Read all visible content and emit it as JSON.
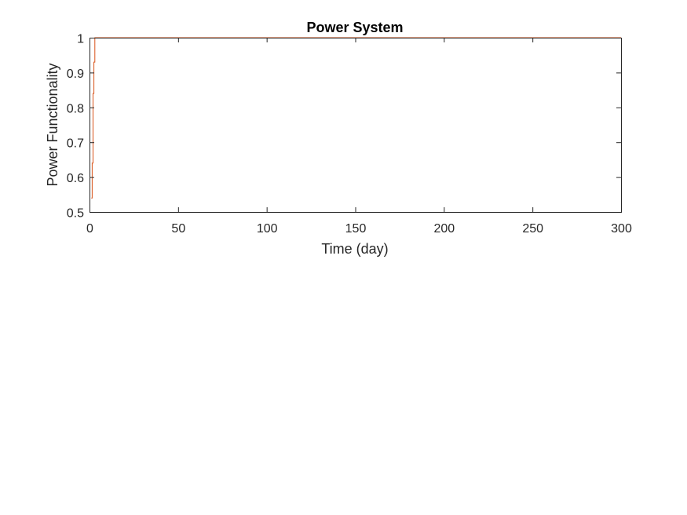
{
  "chart_data": {
    "type": "line",
    "title": "Power System",
    "xlabel": "Time (day)",
    "ylabel": "Power Functionality",
    "xlim": [
      0,
      300
    ],
    "ylim": [
      0.5,
      1
    ],
    "xticks": [
      0,
      50,
      100,
      150,
      200,
      250,
      300
    ],
    "xtick_labels": [
      "0",
      "50",
      "100",
      "150",
      "200",
      "250",
      "300"
    ],
    "yticks": [
      0.5,
      0.6,
      0.7,
      0.8,
      0.9,
      1
    ],
    "ytick_labels": [
      "0.5",
      "0.6",
      "0.7",
      "0.8",
      "0.9",
      "1"
    ],
    "grid": false,
    "series": [
      {
        "color": "#D95319",
        "x": [
          1,
          1,
          1.5,
          1.5,
          2,
          2,
          2.5,
          2.5,
          3,
          3,
          300
        ],
        "y": [
          0.54,
          0.54,
          0.54,
          0.64,
          0.64,
          0.84,
          0.84,
          0.93,
          0.93,
          1,
          1
        ]
      }
    ]
  }
}
